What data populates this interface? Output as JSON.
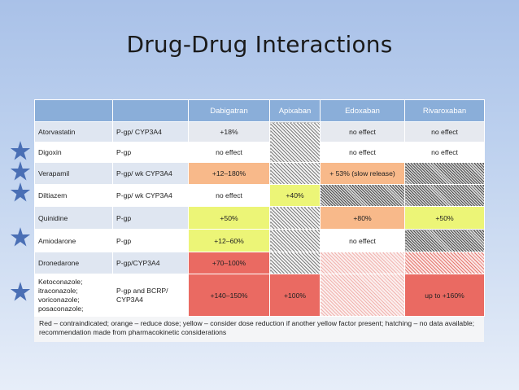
{
  "slide": {
    "title": "Drug-Drug Interactions"
  },
  "table": {
    "headers": [
      "",
      "",
      "Dabigatran",
      "Apixaban",
      "Edoxaban",
      "Rivaroxaban"
    ],
    "rows": [
      {
        "drug": "Atorvastatin",
        "mech": "P-gp/ CYP3A4",
        "cells": [
          {
            "text": "+18%",
            "style": "gray"
          },
          {
            "text": "",
            "style": "hatch-gray",
            "rowspan": 2
          },
          {
            "text": "no effect",
            "style": "gray"
          },
          {
            "text": "no effect",
            "style": "gray"
          }
        ]
      },
      {
        "drug": "Digoxin",
        "mech": "P-gp",
        "cells": [
          {
            "text": "no effect",
            "style": "white"
          },
          {
            "text": "no effect",
            "style": "white"
          },
          {
            "text": "no effect",
            "style": "white"
          }
        ]
      },
      {
        "drug": "Verapamil",
        "mech": "P-gp/ wk CYP3A4",
        "cells": [
          {
            "text": "+12–180%",
            "style": "orange"
          },
          {
            "text": "",
            "style": "hatch-gray"
          },
          {
            "text": "+ 53% (slow release)",
            "style": "orange"
          },
          {
            "text": "",
            "style": "hatch-dark"
          }
        ]
      },
      {
        "drug": "Diltiazem",
        "mech": "P-gp/ wk CYP3A4",
        "cells": [
          {
            "text": "no effect",
            "style": "white"
          },
          {
            "text": "+40%",
            "style": "yellow"
          },
          {
            "text": "",
            "style": "hatch-dark"
          },
          {
            "text": "",
            "style": "hatch-dark"
          }
        ]
      },
      {
        "drug": "Quinidine",
        "mech": "P-gp",
        "cells": [
          {
            "text": "+50%",
            "style": "yellow"
          },
          {
            "text": "",
            "style": "hatch-gray"
          },
          {
            "text": "+80%",
            "style": "orange"
          },
          {
            "text": "+50%",
            "style": "yellow"
          }
        ]
      },
      {
        "drug": "Amiodarone",
        "mech": "P-gp",
        "cells": [
          {
            "text": "+12–60%",
            "style": "yellow"
          },
          {
            "text": "",
            "style": "hatch-gray"
          },
          {
            "text": "no effect",
            "style": "white"
          },
          {
            "text": "",
            "style": "hatch-dark"
          }
        ]
      },
      {
        "drug": "Dronedarone",
        "mech": "P-gp/CYP3A4",
        "cells": [
          {
            "text": "+70–100%",
            "style": "red"
          },
          {
            "text": "",
            "style": "hatch-gray"
          },
          {
            "text": "",
            "style": "hatch-lightred"
          },
          {
            "text": "",
            "style": "hatch-red"
          }
        ]
      },
      {
        "drug": "Ketoconazole; itraconazole; voriconazole; posaconazole;",
        "mech": "P-gp and BCRP/ CYP3A4",
        "cells": [
          {
            "text": "+140–150%",
            "style": "red"
          },
          {
            "text": "+100%",
            "style": "red"
          },
          {
            "text": "",
            "style": "hatch-lightred"
          },
          {
            "text": "up to +160%",
            "style": "red"
          }
        ]
      }
    ]
  },
  "legend": {
    "text": "Red – contraindicated; orange – reduce dose; yellow – consider dose reduction if another yellow factor present; hatching – no data available; recommendation made from pharmacokinetic considerations"
  },
  "colors": {
    "header": "#8aaed9",
    "red": "#ea6a62",
    "orange": "#f8b98a",
    "yellow": "#ecf577",
    "star": "#4a6fb5"
  },
  "stars": {
    "icon": "star-icon"
  }
}
